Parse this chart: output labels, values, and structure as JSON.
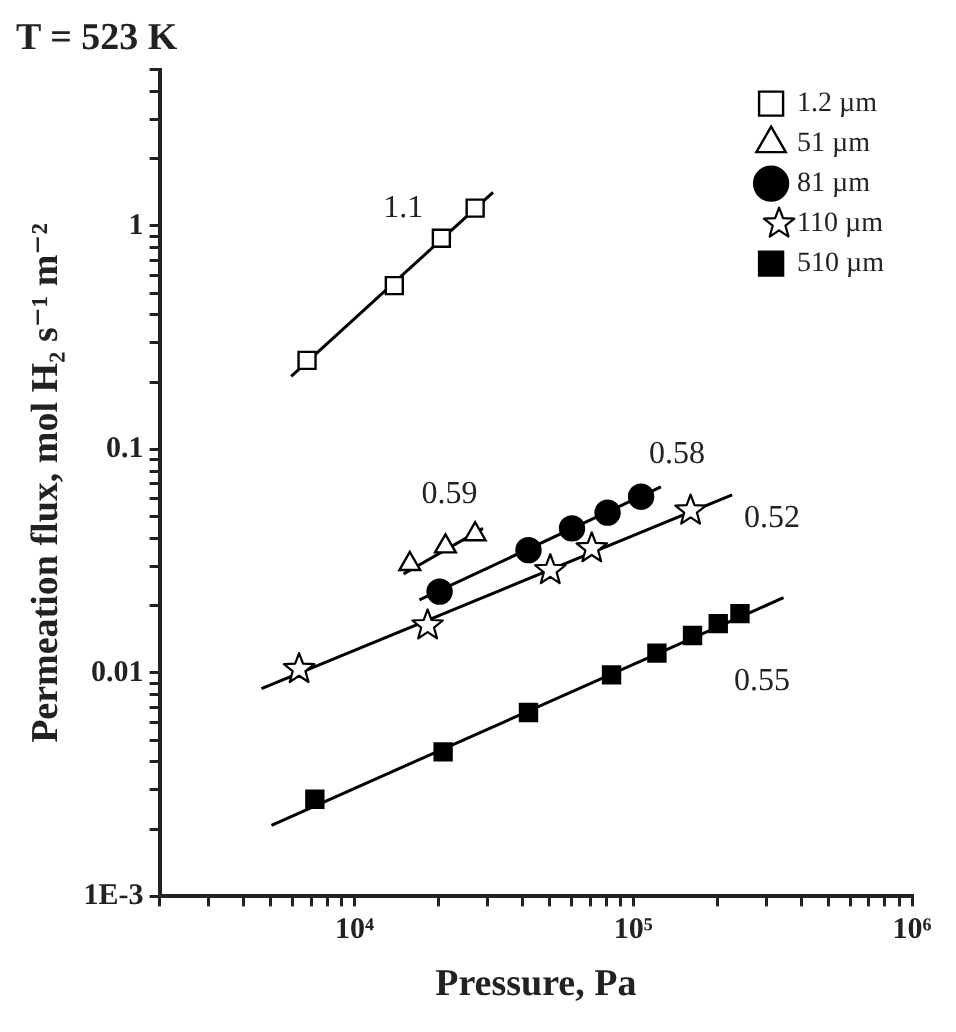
{
  "chart_data": {
    "type": "scatter",
    "title": "T = 523 K",
    "xlabel": "Pressure, Pa",
    "ylabel": "Permeation flux, mol H₂ s⁻¹ m⁻²",
    "log": "xy",
    "legend": "top right",
    "grid": false,
    "xlim": [
      2000,
      1000000
    ],
    "ylim": [
      0.001,
      5
    ],
    "xticks": [
      {
        "value": 2000,
        "label": null
      },
      {
        "value": 3000,
        "label": null
      },
      {
        "value": 4000,
        "label": null
      },
      {
        "value": 5000,
        "label": null
      },
      {
        "value": 6000,
        "label": null
      },
      {
        "value": 7000,
        "label": null
      },
      {
        "value": 8000,
        "label": null
      },
      {
        "value": 9000,
        "label": null
      },
      {
        "value": 10000,
        "label": "10⁴"
      },
      {
        "value": 20000,
        "label": null
      },
      {
        "value": 30000,
        "label": null
      },
      {
        "value": 40000,
        "label": null
      },
      {
        "value": 50000,
        "label": null
      },
      {
        "value": 60000,
        "label": null
      },
      {
        "value": 70000,
        "label": null
      },
      {
        "value": 80000,
        "label": null
      },
      {
        "value": 90000,
        "label": null
      },
      {
        "value": 100000,
        "label": "10⁵"
      },
      {
        "value": 200000,
        "label": null
      },
      {
        "value": 300000,
        "label": null
      },
      {
        "value": 400000,
        "label": null
      },
      {
        "value": 500000,
        "label": null
      },
      {
        "value": 600000,
        "label": null
      },
      {
        "value": 700000,
        "label": null
      },
      {
        "value": 800000,
        "label": null
      },
      {
        "value": 900000,
        "label": null
      },
      {
        "value": 1000000,
        "label": "10⁶"
      }
    ],
    "yticks": [
      {
        "value": 0.001,
        "label": "1E-3"
      },
      {
        "value": 0.002,
        "label": null
      },
      {
        "value": 0.003,
        "label": null
      },
      {
        "value": 0.004,
        "label": null
      },
      {
        "value": 0.005,
        "label": null
      },
      {
        "value": 0.006,
        "label": null
      },
      {
        "value": 0.007,
        "label": null
      },
      {
        "value": 0.008,
        "label": null
      },
      {
        "value": 0.009,
        "label": null
      },
      0.01,
      {
        "value": 0.02,
        "label": null
      },
      {
        "value": 0.03,
        "label": null
      },
      {
        "value": 0.04,
        "label": null
      },
      {
        "value": 0.05,
        "label": null
      },
      {
        "value": 0.06,
        "label": null
      },
      {
        "value": 0.07,
        "label": null
      },
      {
        "value": 0.08,
        "label": null
      },
      {
        "value": 0.09,
        "label": null
      },
      0.1,
      {
        "value": 0.2,
        "label": null
      },
      {
        "value": 0.3,
        "label": null
      },
      {
        "value": 0.4,
        "label": null
      },
      {
        "value": 0.5,
        "label": null
      },
      {
        "value": 0.6,
        "label": null
      },
      {
        "value": 0.7,
        "label": null
      },
      {
        "value": 0.8,
        "label": null
      },
      {
        "value": 0.9,
        "label": null
      },
      1,
      {
        "value": 2,
        "label": null
      },
      {
        "value": 3,
        "label": null
      },
      {
        "value": 4,
        "label": null
      },
      {
        "value": 5,
        "label": null
      }
    ],
    "series": [
      {
        "name": "1.2 µm",
        "color": "#ffffff",
        "marker": "square",
        "x": [
          6760,
          13900,
          20500,
          27100
        ],
        "values": [
          0.25,
          0.54,
          0.88,
          1.2
        ]
      },
      {
        "name": "51 µm",
        "color": "#ffffff",
        "marker": "triangle",
        "x": [
          15800,
          21200,
          27100
        ],
        "values": [
          0.0307,
          0.0368,
          0.0417
        ]
      },
      {
        "name": "81 µm",
        "color": "#000000",
        "marker": "circle",
        "x": [
          20200,
          42100,
          60300,
          80900,
          106700
        ],
        "values": [
          0.0231,
          0.0354,
          0.0443,
          0.0521,
          0.0614
        ]
      },
      {
        "name": "110 µm",
        "color": "#ffffff",
        "marker": "star",
        "x": [
          6330,
          18300,
          50400,
          71000,
          160600
        ],
        "values": [
          0.0104,
          0.0163,
          0.0288,
          0.0361,
          0.0532
        ]
      },
      {
        "name": "510 µm",
        "color": "#000000",
        "marker": "square",
        "x": [
          7210,
          20800,
          42100,
          83600,
          121600,
          163200,
          201800,
          241500
        ],
        "values": [
          0.00272,
          0.00443,
          0.00665,
          0.0098,
          0.01226,
          0.0147,
          0.0166,
          0.0184
        ]
      },
      {
        "type": "line",
        "color": "#000000",
        "marker": "none",
        "x": [
          5930,
          31400
        ],
        "values": [
          0.212,
          1.41
        ]
      },
      {
        "type": "line",
        "color": "#000000",
        "marker": "none",
        "x": [
          15000,
          28900
        ],
        "values": [
          0.0277,
          0.0443
        ]
      },
      {
        "type": "line",
        "color": "#000000",
        "marker": "none",
        "x": [
          17100,
          125700
        ],
        "values": [
          0.0212,
          0.0679
        ]
      },
      {
        "type": "line",
        "color": "#000000",
        "marker": "none",
        "x": [
          4640,
          226300
        ],
        "values": [
          0.0085,
          0.0626
        ]
      },
      {
        "type": "line",
        "color": "#000000",
        "marker": "none",
        "x": [
          5040,
          346000
        ],
        "values": [
          0.00208,
          0.0217
        ]
      }
    ],
    "annotations": [
      {
        "text": "1.1",
        "x": 27100,
        "y": 1.2
      },
      {
        "text": "0.59",
        "x": 21200,
        "y": 0.0368
      },
      {
        "text": "0.58",
        "x": 125700,
        "y": 0.0679
      },
      {
        "text": "0.52",
        "x": 226300,
        "y": 0.0626
      },
      {
        "text": "0.55",
        "x": 241500,
        "y": 0.0184
      }
    ]
  }
}
